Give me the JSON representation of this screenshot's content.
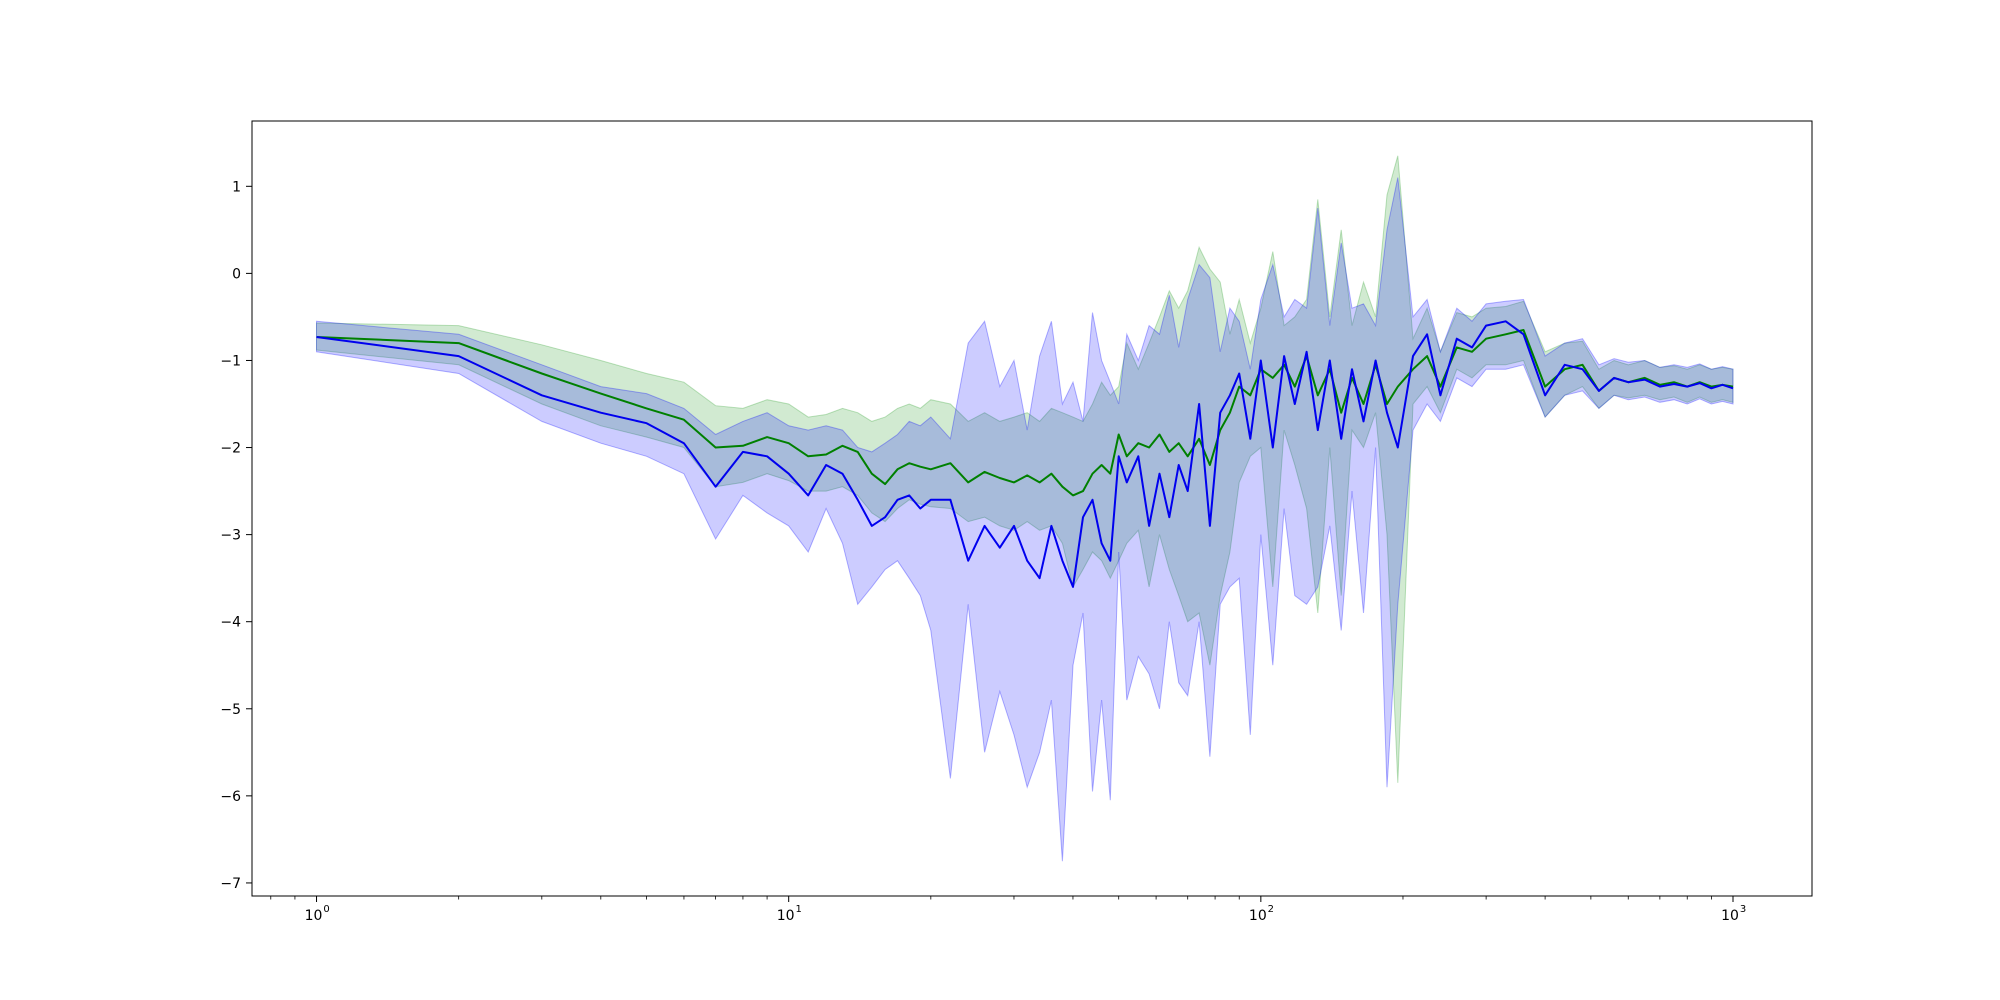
{
  "chart_data": {
    "type": "line",
    "title": "",
    "xlabel": "",
    "ylabel": "",
    "xscale": "log",
    "xlim": [
      0.73,
      1470
    ],
    "ylim": [
      -7.15,
      1.75
    ],
    "grid": false,
    "legend": "none",
    "x_ticks": [
      {
        "base": "10",
        "exp": "0",
        "value": 1
      },
      {
        "base": "10",
        "exp": "1",
        "value": 10
      },
      {
        "base": "10",
        "exp": "2",
        "value": 100
      },
      {
        "base": "10",
        "exp": "3",
        "value": 1000
      }
    ],
    "y_ticks": [
      {
        "label": "1",
        "value": 1
      },
      {
        "label": "0",
        "value": 0
      },
      {
        "label": "−1",
        "value": -1
      },
      {
        "label": "−2",
        "value": -2
      },
      {
        "label": "−3",
        "value": -3
      },
      {
        "label": "−4",
        "value": -4
      },
      {
        "label": "−5",
        "value": -5
      },
      {
        "label": "−6",
        "value": -6
      },
      {
        "label": "−7",
        "value": -7
      }
    ],
    "series": [
      {
        "color": "#008000",
        "band_color": "#2ca02c",
        "x": [
          1,
          2,
          3,
          4,
          5,
          6,
          7,
          8,
          9,
          10,
          11,
          12,
          13,
          14,
          15,
          16,
          17,
          18,
          19,
          20,
          22,
          24,
          26,
          28,
          30,
          32,
          34,
          36,
          38,
          40,
          42,
          44,
          46,
          48,
          50,
          52,
          55,
          58,
          61,
          64,
          67,
          70,
          74,
          78,
          82,
          86,
          90,
          95,
          100,
          106,
          112,
          118,
          125,
          132,
          140,
          148,
          156,
          165,
          175,
          185,
          195,
          210,
          225,
          240,
          260,
          280,
          300,
          330,
          360,
          400,
          440,
          480,
          520,
          560,
          600,
          650,
          700,
          750,
          800,
          850,
          900,
          950,
          1000
        ],
        "y": [
          -0.73,
          -0.8,
          -1.15,
          -1.38,
          -1.55,
          -1.68,
          -2.0,
          -1.98,
          -1.88,
          -1.95,
          -2.1,
          -2.08,
          -1.98,
          -2.05,
          -2.3,
          -2.42,
          -2.25,
          -2.18,
          -2.22,
          -2.25,
          -2.18,
          -2.4,
          -2.28,
          -2.35,
          -2.4,
          -2.32,
          -2.4,
          -2.3,
          -2.45,
          -2.55,
          -2.5,
          -2.3,
          -2.2,
          -2.3,
          -1.85,
          -2.1,
          -1.95,
          -2.0,
          -1.85,
          -2.05,
          -1.95,
          -2.1,
          -1.9,
          -2.2,
          -1.8,
          -1.6,
          -1.3,
          -1.4,
          -1.1,
          -1.2,
          -1.05,
          -1.3,
          -0.95,
          -1.4,
          -1.1,
          -1.6,
          -1.2,
          -1.5,
          -1.05,
          -1.5,
          -1.3,
          -1.1,
          -0.95,
          -1.3,
          -0.85,
          -0.9,
          -0.75,
          -0.7,
          -0.65,
          -1.3,
          -1.1,
          -1.05,
          -1.35,
          -1.2,
          -1.25,
          -1.2,
          -1.28,
          -1.25,
          -1.3,
          -1.25,
          -1.3,
          -1.28,
          -1.3
        ],
        "lower": [
          -0.88,
          -1.05,
          -1.5,
          -1.75,
          -1.88,
          -2.0,
          -2.45,
          -2.4,
          -2.3,
          -2.38,
          -2.5,
          -2.5,
          -2.45,
          -2.55,
          -2.75,
          -2.85,
          -2.7,
          -2.6,
          -2.65,
          -2.68,
          -2.7,
          -2.85,
          -2.8,
          -2.9,
          -2.95,
          -2.85,
          -2.95,
          -2.9,
          -3.1,
          -3.6,
          -3.4,
          -3.2,
          -3.3,
          -3.5,
          -3.3,
          -3.1,
          -2.95,
          -3.6,
          -3.0,
          -3.4,
          -3.7,
          -4.0,
          -3.9,
          -4.5,
          -3.7,
          -3.2,
          -2.4,
          -2.1,
          -2.0,
          -3.6,
          -1.8,
          -2.2,
          -2.7,
          -3.9,
          -2.0,
          -3.7,
          -1.8,
          -2.0,
          -1.6,
          -3.0,
          -5.85,
          -1.5,
          -1.3,
          -1.6,
          -1.1,
          -1.2,
          -1.05,
          -1.05,
          -1.0,
          -1.65,
          -1.4,
          -1.3,
          -1.55,
          -1.4,
          -1.43,
          -1.4,
          -1.45,
          -1.42,
          -1.48,
          -1.42,
          -1.48,
          -1.45,
          -1.48
        ],
        "upper": [
          -0.57,
          -0.6,
          -0.82,
          -1.0,
          -1.15,
          -1.25,
          -1.52,
          -1.55,
          -1.45,
          -1.5,
          -1.65,
          -1.62,
          -1.55,
          -1.6,
          -1.7,
          -1.65,
          -1.55,
          -1.5,
          -1.55,
          -1.45,
          -1.5,
          -1.7,
          -1.6,
          -1.7,
          -1.65,
          -1.6,
          -1.7,
          -1.55,
          -1.6,
          -1.65,
          -1.7,
          -1.5,
          -1.25,
          -1.4,
          -1.3,
          -0.8,
          -1.1,
          -0.8,
          -0.5,
          -0.2,
          -0.4,
          -0.2,
          0.3,
          0.05,
          -0.1,
          -0.7,
          -0.3,
          -0.8,
          -0.4,
          0.25,
          -0.6,
          -0.5,
          -0.3,
          0.85,
          -0.5,
          0.5,
          -0.6,
          -0.1,
          -0.5,
          0.9,
          1.35,
          -0.75,
          -0.4,
          -0.9,
          -0.45,
          -0.5,
          -0.4,
          -0.38,
          -0.32,
          -0.9,
          -0.8,
          -0.78,
          -1.1,
          -1.0,
          -1.05,
          -1.0,
          -1.08,
          -1.06,
          -1.1,
          -1.05,
          -1.1,
          -1.08,
          -1.1
        ]
      },
      {
        "color": "#0000ee",
        "band_color": "#0000ff",
        "x": [
          1,
          2,
          3,
          4,
          5,
          6,
          7,
          8,
          9,
          10,
          11,
          12,
          13,
          14,
          15,
          16,
          17,
          18,
          19,
          20,
          22,
          24,
          26,
          28,
          30,
          32,
          34,
          36,
          38,
          40,
          42,
          44,
          46,
          48,
          50,
          52,
          55,
          58,
          61,
          64,
          67,
          70,
          74,
          78,
          82,
          86,
          90,
          95,
          100,
          106,
          112,
          118,
          125,
          132,
          140,
          148,
          156,
          165,
          175,
          185,
          195,
          210,
          225,
          240,
          260,
          280,
          300,
          330,
          360,
          400,
          440,
          480,
          520,
          560,
          600,
          650,
          700,
          750,
          800,
          850,
          900,
          950,
          1000
        ],
        "y": [
          -0.73,
          -0.95,
          -1.4,
          -1.6,
          -1.72,
          -1.95,
          -2.45,
          -2.05,
          -2.1,
          -2.3,
          -2.55,
          -2.2,
          -2.3,
          -2.6,
          -2.9,
          -2.8,
          -2.6,
          -2.55,
          -2.7,
          -2.6,
          -2.6,
          -3.3,
          -2.9,
          -3.15,
          -2.9,
          -3.3,
          -3.5,
          -2.9,
          -3.3,
          -3.6,
          -2.8,
          -2.6,
          -3.1,
          -3.3,
          -2.1,
          -2.4,
          -2.1,
          -2.9,
          -2.3,
          -2.8,
          -2.2,
          -2.5,
          -1.5,
          -2.9,
          -1.6,
          -1.4,
          -1.15,
          -1.9,
          -1.0,
          -2.0,
          -0.95,
          -1.5,
          -0.9,
          -1.8,
          -1.0,
          -1.9,
          -1.1,
          -1.7,
          -1.0,
          -1.6,
          -2.0,
          -0.95,
          -0.7,
          -1.4,
          -0.75,
          -0.85,
          -0.6,
          -0.55,
          -0.7,
          -1.4,
          -1.05,
          -1.1,
          -1.35,
          -1.2,
          -1.25,
          -1.22,
          -1.3,
          -1.27,
          -1.3,
          -1.26,
          -1.32,
          -1.28,
          -1.32
        ],
        "lower": [
          -0.9,
          -1.15,
          -1.7,
          -1.95,
          -2.1,
          -2.3,
          -3.05,
          -2.55,
          -2.75,
          -2.9,
          -3.2,
          -2.7,
          -3.1,
          -3.8,
          -3.6,
          -3.4,
          -3.3,
          -3.5,
          -3.7,
          -4.1,
          -5.8,
          -3.8,
          -5.5,
          -4.8,
          -5.3,
          -5.9,
          -5.5,
          -4.9,
          -6.75,
          -4.5,
          -3.9,
          -5.95,
          -4.9,
          -6.05,
          -3.2,
          -4.9,
          -4.4,
          -4.6,
          -5.0,
          -4.0,
          -4.7,
          -4.85,
          -4.0,
          -5.55,
          -3.8,
          -3.6,
          -3.5,
          -5.3,
          -3.0,
          -4.5,
          -2.7,
          -3.7,
          -3.8,
          -3.6,
          -2.9,
          -4.1,
          -2.5,
          -3.9,
          -2.0,
          -5.9,
          -3.8,
          -1.8,
          -1.5,
          -1.7,
          -1.2,
          -1.3,
          -1.1,
          -1.1,
          -1.05,
          -1.65,
          -1.4,
          -1.35,
          -1.55,
          -1.4,
          -1.45,
          -1.42,
          -1.48,
          -1.45,
          -1.5,
          -1.44,
          -1.5,
          -1.47,
          -1.5
        ],
        "upper": [
          -0.55,
          -0.7,
          -1.05,
          -1.3,
          -1.38,
          -1.55,
          -1.85,
          -1.7,
          -1.6,
          -1.75,
          -1.8,
          -1.75,
          -1.8,
          -2.0,
          -2.05,
          -1.95,
          -1.85,
          -1.7,
          -1.75,
          -1.65,
          -1.9,
          -0.8,
          -0.55,
          -1.3,
          -1.0,
          -1.8,
          -0.95,
          -0.55,
          -1.5,
          -1.25,
          -1.7,
          -0.45,
          -1.0,
          -1.25,
          -1.5,
          -0.7,
          -1.0,
          -0.6,
          -0.7,
          -0.25,
          -0.85,
          -0.3,
          0.1,
          -0.05,
          -0.9,
          -0.4,
          -0.55,
          -1.1,
          -0.3,
          0.1,
          -0.5,
          -0.3,
          -0.4,
          0.75,
          -0.6,
          0.35,
          -0.4,
          -0.35,
          -0.6,
          0.5,
          1.1,
          -0.5,
          -0.3,
          -0.9,
          -0.4,
          -0.55,
          -0.35,
          -0.32,
          -0.3,
          -0.95,
          -0.8,
          -0.75,
          -1.05,
          -0.98,
          -1.02,
          -1.0,
          -1.08,
          -1.05,
          -1.08,
          -1.04,
          -1.1,
          -1.07,
          -1.1
        ]
      }
    ]
  }
}
